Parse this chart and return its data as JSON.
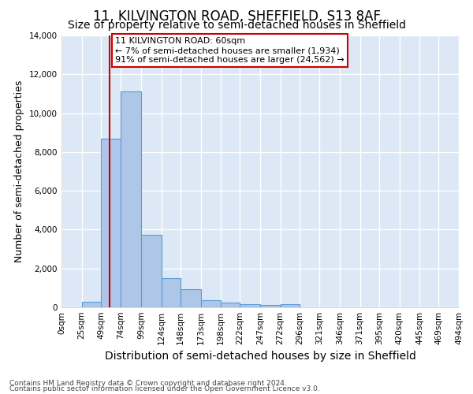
{
  "title": "11, KILVINGTON ROAD, SHEFFIELD, S13 8AF",
  "subtitle": "Size of property relative to semi-detached houses in Sheffield",
  "xlabel": "Distribution of semi-detached houses by size in Sheffield",
  "ylabel": "Number of semi-detached properties",
  "footer_line1": "Contains HM Land Registry data © Crown copyright and database right 2024.",
  "footer_line2": "Contains public sector information licensed under the Open Government Licence v3.0.",
  "annotation_title": "11 KILVINGTON ROAD: 60sqm",
  "annotation_line1": "← 7% of semi-detached houses are smaller (1,934)",
  "annotation_line2": "91% of semi-detached houses are larger (24,562) →",
  "bar_edges": [
    0,
    25,
    49,
    74,
    99,
    124,
    148,
    173,
    198,
    222,
    247,
    272,
    296,
    321,
    346,
    371,
    395,
    420,
    445,
    469,
    494
  ],
  "bar_heights": [
    0,
    300,
    8700,
    11100,
    3750,
    1500,
    950,
    380,
    230,
    170,
    130,
    150,
    0,
    0,
    0,
    0,
    0,
    0,
    0,
    0
  ],
  "bar_color": "#aec6e8",
  "bar_edge_color": "#5b9bd5",
  "red_line_x": 60,
  "ylim": [
    0,
    14000
  ],
  "xlim": [
    0,
    494
  ],
  "fig_background": "#ffffff",
  "axes_background": "#dce8f5",
  "grid_color": "#ffffff",
  "annotation_box_color": "#ffffff",
  "annotation_box_edge": "#cc0000",
  "red_line_color": "#cc0000",
  "title_fontsize": 12,
  "subtitle_fontsize": 10,
  "ylabel_fontsize": 9,
  "xlabel_fontsize": 10,
  "tick_fontsize": 7.5,
  "footer_fontsize": 6.5,
  "annotation_fontsize": 8,
  "tick_labels": [
    "0sqm",
    "25sqm",
    "49sqm",
    "74sqm",
    "99sqm",
    "124sqm",
    "148sqm",
    "173sqm",
    "198sqm",
    "222sqm",
    "247sqm",
    "272sqm",
    "296sqm",
    "321sqm",
    "346sqm",
    "371sqm",
    "395sqm",
    "420sqm",
    "445sqm",
    "469sqm",
    "494sqm"
  ]
}
